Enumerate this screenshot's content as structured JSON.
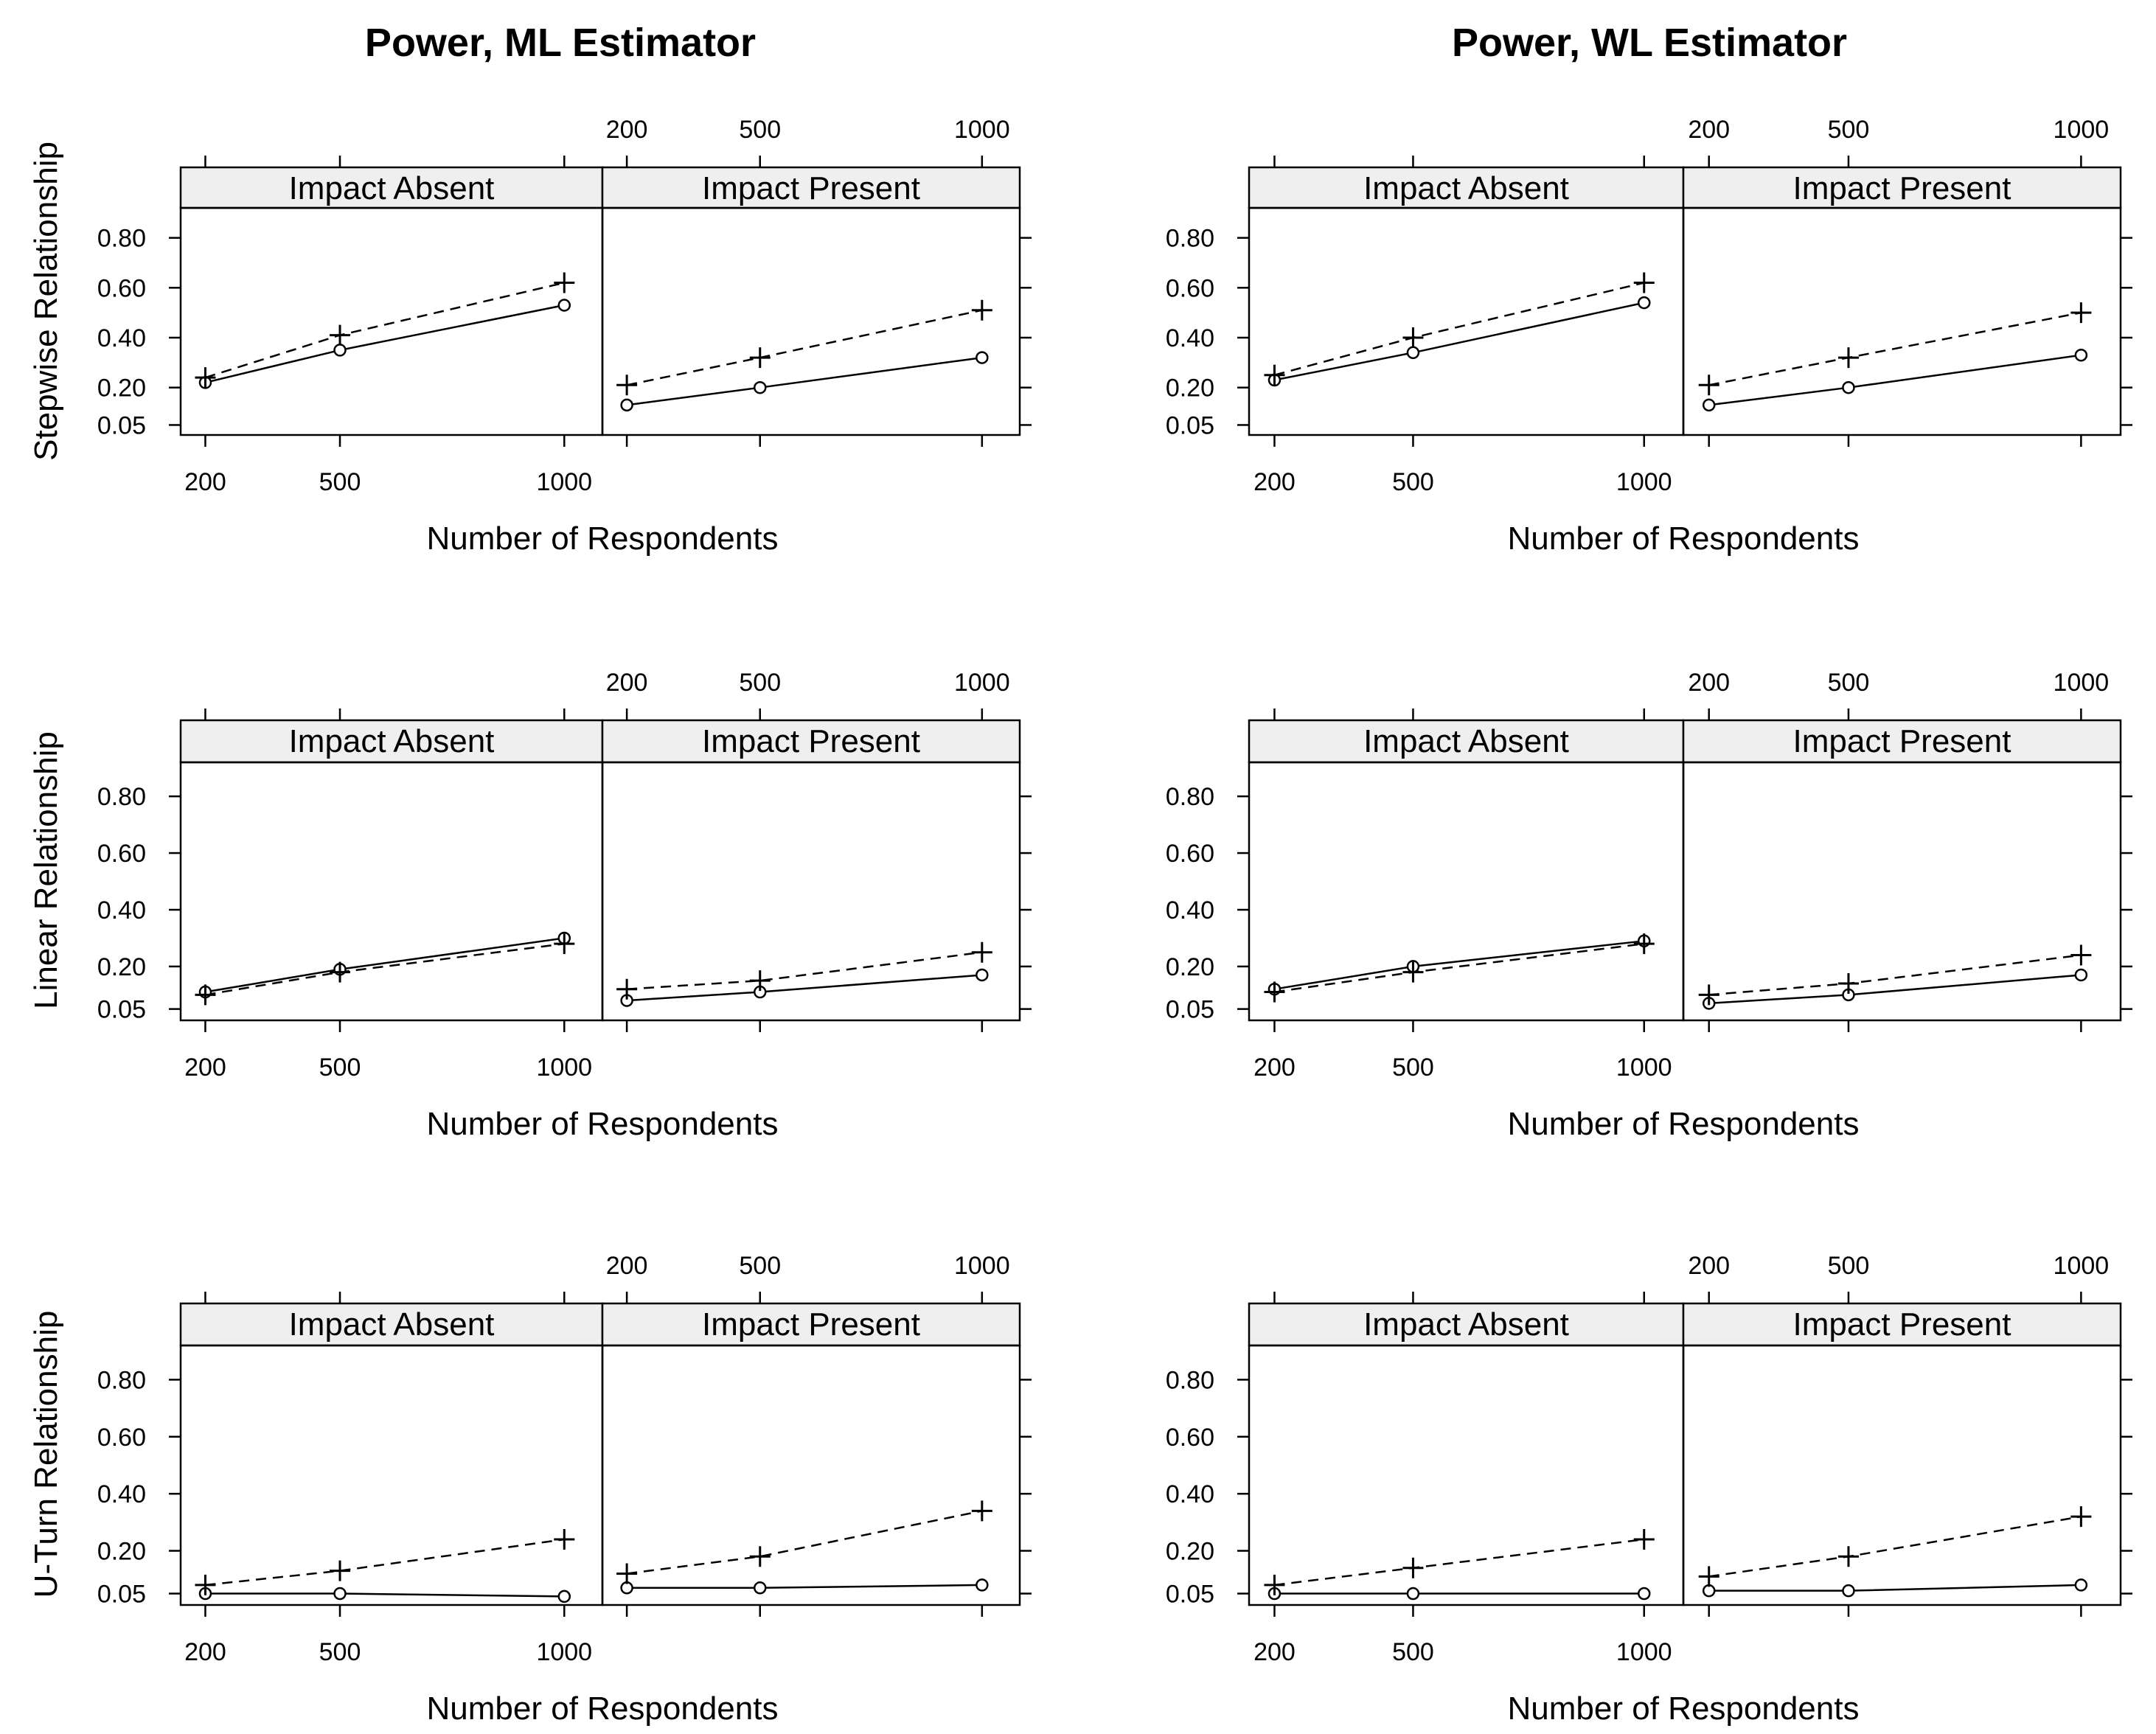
{
  "figure": {
    "column_titles": [
      "Power, ML Estimator",
      "Power, WL Estimator"
    ],
    "row_labels": [
      "Stepwise Relationship",
      "Linear Relationship",
      "U-Turn Relationship"
    ],
    "x_axis_label": "Number of Respondents",
    "x_tick_labels": [
      "200",
      "500",
      "1000"
    ],
    "y_tick_labels": [
      "0.05",
      "0.20",
      "0.40",
      "0.60",
      "0.80"
    ],
    "panel_labels": [
      "Impact Absent",
      "Impact Present"
    ]
  },
  "chart_data": {
    "type": "line",
    "x": [
      200,
      500,
      1000
    ],
    "xlim": [
      145,
      1085
    ],
    "ylim": [
      0.01,
      0.92
    ],
    "yticks": [
      0.05,
      0.2,
      0.4,
      0.6,
      0.8
    ],
    "series_styles": [
      {
        "name": "solid-circle",
        "line": "solid",
        "marker": "circle"
      },
      {
        "name": "dashed-plus",
        "line": "dashed",
        "marker": "plus"
      }
    ],
    "rows": [
      {
        "label": "Stepwise Relationship",
        "columns": [
          {
            "estimator": "ML",
            "panels": [
              {
                "label": "Impact Absent",
                "solid": [
                  0.22,
                  0.35,
                  0.53
                ],
                "dashed": [
                  0.24,
                  0.41,
                  0.62
                ]
              },
              {
                "label": "Impact Present",
                "solid": [
                  0.13,
                  0.2,
                  0.32
                ],
                "dashed": [
                  0.21,
                  0.32,
                  0.51
                ]
              }
            ]
          },
          {
            "estimator": "WL",
            "panels": [
              {
                "label": "Impact Absent",
                "solid": [
                  0.23,
                  0.34,
                  0.54
                ],
                "dashed": [
                  0.25,
                  0.4,
                  0.62
                ]
              },
              {
                "label": "Impact Present",
                "solid": [
                  0.13,
                  0.2,
                  0.33
                ],
                "dashed": [
                  0.21,
                  0.32,
                  0.5
                ]
              }
            ]
          }
        ]
      },
      {
        "label": "Linear Relationship",
        "columns": [
          {
            "estimator": "ML",
            "panels": [
              {
                "label": "Impact Absent",
                "solid": [
                  0.11,
                  0.19,
                  0.3
                ],
                "dashed": [
                  0.1,
                  0.18,
                  0.28
                ]
              },
              {
                "label": "Impact Present",
                "solid": [
                  0.08,
                  0.11,
                  0.17
                ],
                "dashed": [
                  0.12,
                  0.15,
                  0.25
                ]
              }
            ]
          },
          {
            "estimator": "WL",
            "panels": [
              {
                "label": "Impact Absent",
                "solid": [
                  0.12,
                  0.2,
                  0.29
                ],
                "dashed": [
                  0.11,
                  0.18,
                  0.28
                ]
              },
              {
                "label": "Impact Present",
                "solid": [
                  0.07,
                  0.1,
                  0.17
                ],
                "dashed": [
                  0.1,
                  0.14,
                  0.24
                ]
              }
            ]
          }
        ]
      },
      {
        "label": "U-Turn Relationship",
        "columns": [
          {
            "estimator": "ML",
            "panels": [
              {
                "label": "Impact Absent",
                "solid": [
                  0.05,
                  0.05,
                  0.04
                ],
                "dashed": [
                  0.08,
                  0.13,
                  0.24
                ]
              },
              {
                "label": "Impact Present",
                "solid": [
                  0.07,
                  0.07,
                  0.08
                ],
                "dashed": [
                  0.12,
                  0.18,
                  0.34
                ]
              }
            ]
          },
          {
            "estimator": "WL",
            "panels": [
              {
                "label": "Impact Absent",
                "solid": [
                  0.05,
                  0.05,
                  0.05
                ],
                "dashed": [
                  0.08,
                  0.14,
                  0.24
                ]
              },
              {
                "label": "Impact Present",
                "solid": [
                  0.06,
                  0.06,
                  0.08
                ],
                "dashed": [
                  0.11,
                  0.18,
                  0.32
                ]
              }
            ]
          }
        ]
      }
    ]
  }
}
